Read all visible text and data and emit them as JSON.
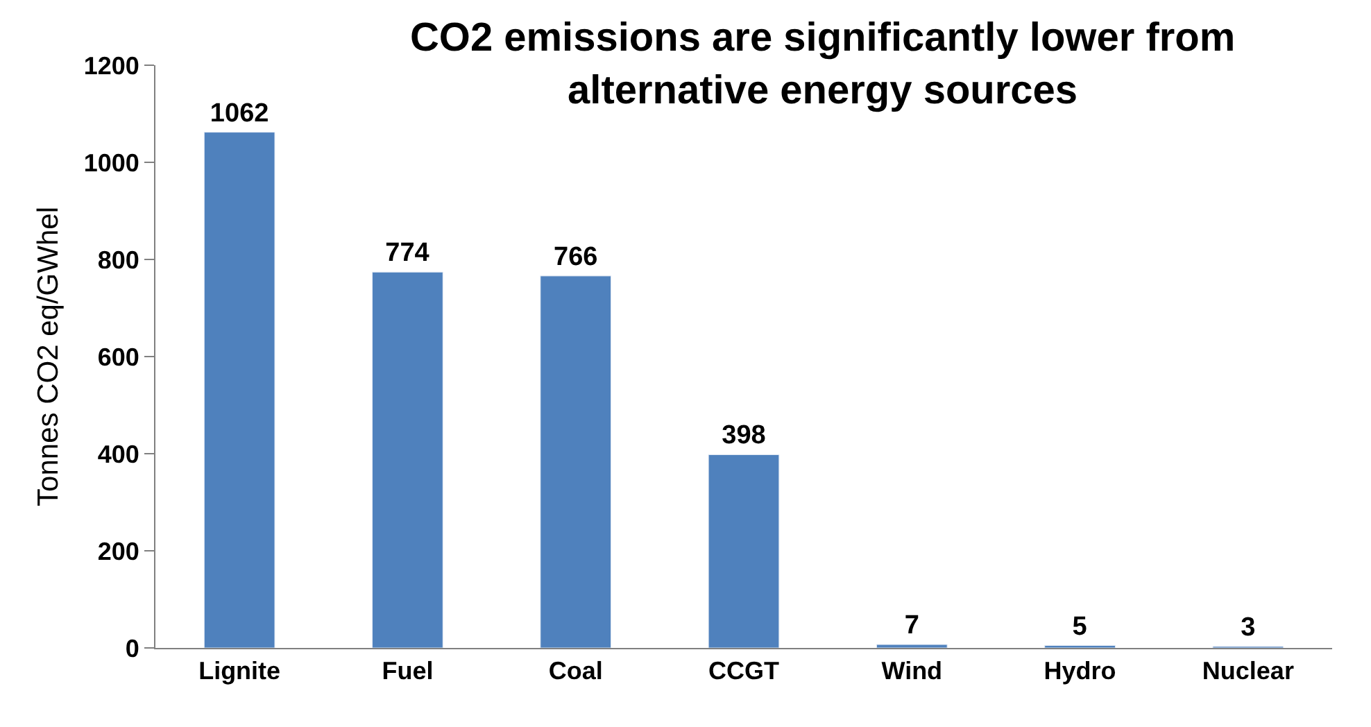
{
  "chart_data": {
    "type": "bar",
    "title": "CO2 emissions are significantly lower from alternative energy sources",
    "ylabel": "Tonnes CO2 eq/GWhel",
    "categories": [
      "Lignite",
      "Fuel",
      "Coal",
      "CCGT",
      "Wind",
      "Hydro",
      "Nuclear"
    ],
    "values": [
      1062,
      774,
      766,
      398,
      7,
      5,
      3
    ],
    "color": "#4f81bd",
    "ylim": [
      0,
      1200
    ],
    "yticks": [
      0,
      200,
      400,
      600,
      800,
      1000,
      1200
    ],
    "data_labels": true,
    "legend": false
  }
}
